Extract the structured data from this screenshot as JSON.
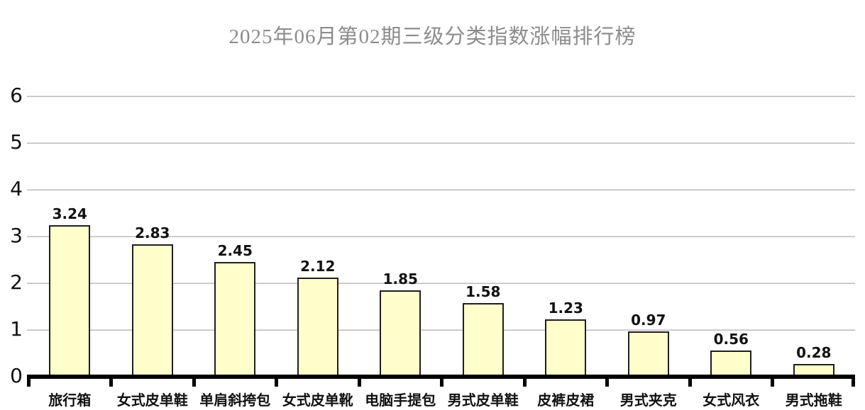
{
  "title": "2025年06月第02期三级分类指数涨幅排行榜",
  "chart_data": {
    "type": "bar",
    "title": "2025年06月第02期三级分类指数涨幅排行榜",
    "categories": [
      "旅行箱",
      "女式皮单鞋",
      "单肩斜挎包",
      "女式皮单靴",
      "电脑手提包",
      "男式皮单鞋",
      "皮裤皮裙",
      "男式夹克",
      "女式风衣",
      "男式拖鞋"
    ],
    "values": [
      3.24,
      2.83,
      2.45,
      2.12,
      1.85,
      1.58,
      1.23,
      0.97,
      0.56,
      0.28
    ],
    "value_labels": [
      "3.24",
      "2.83",
      "2.45",
      "2.12",
      "1.85",
      "1.58",
      "1.23",
      "0.97",
      "0.56",
      "0.28"
    ],
    "xlabel": "",
    "ylabel": "",
    "ylim": [
      0,
      6
    ],
    "yticks": [
      0,
      1,
      2,
      3,
      4,
      5,
      6
    ],
    "grid": "horizontal",
    "legend": "none",
    "bar_fill_color": "#FFFFCC",
    "bar_border_color": "#1F1F1F",
    "gridline_color": "#BFBFBF",
    "axis_color": "#000000",
    "title_color": "#8C8C8C"
  }
}
